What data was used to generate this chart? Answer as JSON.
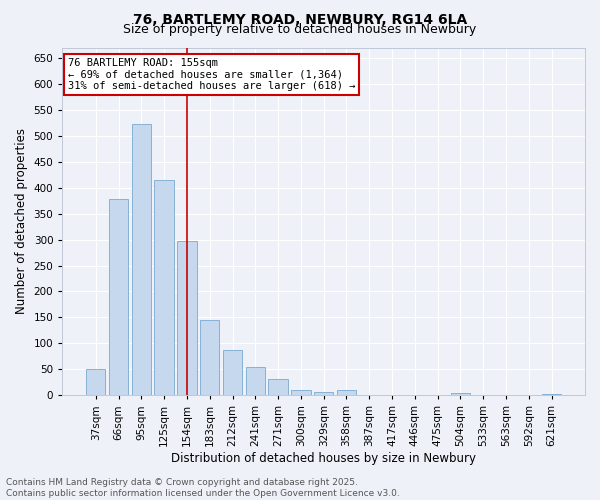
{
  "title1": "76, BARTLEMY ROAD, NEWBURY, RG14 6LA",
  "title2": "Size of property relative to detached houses in Newbury",
  "xlabel": "Distribution of detached houses by size in Newbury",
  "ylabel": "Number of detached properties",
  "categories": [
    "37sqm",
    "66sqm",
    "95sqm",
    "125sqm",
    "154sqm",
    "183sqm",
    "212sqm",
    "241sqm",
    "271sqm",
    "300sqm",
    "329sqm",
    "358sqm",
    "387sqm",
    "417sqm",
    "446sqm",
    "475sqm",
    "504sqm",
    "533sqm",
    "563sqm",
    "592sqm",
    "621sqm"
  ],
  "values": [
    50,
    378,
    522,
    415,
    297,
    145,
    87,
    55,
    31,
    10,
    7,
    11,
    0,
    0,
    0,
    0,
    5,
    0,
    0,
    0,
    3
  ],
  "bar_color": "#c5d8ee",
  "bar_edge_color": "#7aaad0",
  "property_line_index": 4,
  "property_label": "76 BARTLEMY ROAD: 155sqm",
  "annotation_line1": "← 69% of detached houses are smaller (1,364)",
  "annotation_line2": "31% of semi-detached houses are larger (618) →",
  "annotation_box_color": "#cc0000",
  "vline_color": "#cc0000",
  "ylim": [
    0,
    670
  ],
  "yticks": [
    0,
    50,
    100,
    150,
    200,
    250,
    300,
    350,
    400,
    450,
    500,
    550,
    600,
    650
  ],
  "bg_color": "#eef2f8",
  "grid_color": "#d8dfe8",
  "footer1": "Contains HM Land Registry data © Crown copyright and database right 2025.",
  "footer2": "Contains public sector information licensed under the Open Government Licence v3.0.",
  "title_fontsize": 10,
  "subtitle_fontsize": 9,
  "axis_label_fontsize": 8.5,
  "tick_fontsize": 7.5,
  "footer_fontsize": 6.5,
  "annotation_fontsize": 7.5
}
